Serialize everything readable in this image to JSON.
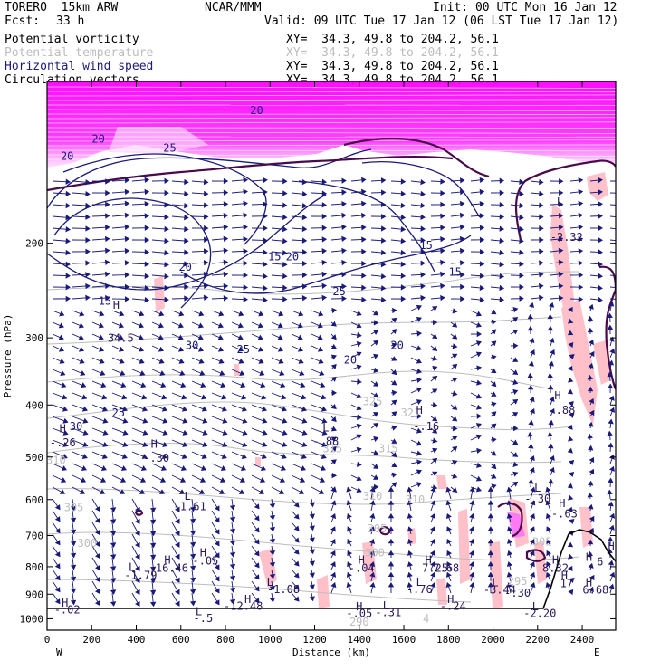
{
  "header": {
    "model": "TORERO  15km ARW",
    "org": "NCAR/MMM",
    "init": "Init: 00 UTC Mon 16 Jan 12",
    "fcst_label": "Fcst:",
    "fcst_value": "33 h",
    "valid": "Valid: 09 UTC Tue 17 Jan 12 (06 LST Tue 17 Jan 12)"
  },
  "fields": [
    {
      "name": "Potential vorticity",
      "xy": "XY=  34.3, 49.8 to 204.2, 56.1",
      "color": "#000000"
    },
    {
      "name": "Potential temperature",
      "xy": "XY=  34.3, 49.8 to 204.2, 56.1",
      "color": "#bdbdbd"
    },
    {
      "name": "Horizontal wind speed",
      "xy": "XY=  34.3, 49.8 to 204.2, 56.1",
      "color": "#1a1a7a"
    },
    {
      "name": "Circulation vectors",
      "xy": "XY=  34.3, 49.8 to 204.2, 56.1",
      "color": "#000000"
    }
  ],
  "chart_data": {
    "type": "cross-section",
    "xlabel": "Distance (km)",
    "ylabel": "Pressure (hPa)",
    "x_ticks": [
      0,
      200,
      400,
      600,
      800,
      1000,
      1200,
      1400,
      1600,
      1800,
      2000,
      2200,
      2400
    ],
    "y_ticks": [
      200,
      300,
      400,
      500,
      600,
      700,
      800,
      900,
      1000
    ],
    "xlim": [
      0,
      2550
    ],
    "ylim": [
      1050,
      100
    ],
    "x_end_labels": {
      "left": "W",
      "right": "E"
    },
    "colors": {
      "pv_shade_high": "#ff00ff",
      "pv_shade_low": "#ffb6c1",
      "theta": "#bdbdbd",
      "wind": "#1a1a7a",
      "vectors": "#1a1a7a",
      "ground": "#000000"
    },
    "theta_labels": [
      {
        "x": 120,
        "p": 630,
        "t": "305"
      },
      {
        "x": 180,
        "p": 735,
        "t": "300"
      },
      {
        "x": 40,
        "p": 515,
        "t": "310"
      },
      {
        "x": 1280,
        "p": 490,
        "t": "315"
      },
      {
        "x": 1530,
        "p": 490,
        "t": "315"
      },
      {
        "x": 1460,
        "p": 600,
        "t": "310"
      },
      {
        "x": 1650,
        "p": 610,
        "t": "310"
      },
      {
        "x": 1480,
        "p": 690,
        "t": "305"
      },
      {
        "x": 2220,
        "p": 730,
        "t": "305"
      },
      {
        "x": 1470,
        "p": 765,
        "t": "300"
      },
      {
        "x": 1460,
        "p": 400,
        "t": "325"
      },
      {
        "x": 1630,
        "p": 420,
        "t": "321"
      },
      {
        "x": 1700,
        "p": 1015,
        "t": "4"
      },
      {
        "x": 2110,
        "p": 865,
        "t": "295"
      },
      {
        "x": 1400,
        "p": 1030,
        "t": "290"
      }
    ],
    "wind_labels": [
      {
        "x": 90,
        "p": 140,
        "t": "20"
      },
      {
        "x": 230,
        "p": 130,
        "t": "20"
      },
      {
        "x": 550,
        "p": 135,
        "t": "25"
      },
      {
        "x": 940,
        "p": 115,
        "t": "20"
      },
      {
        "x": 620,
        "p": 225,
        "t": "20"
      },
      {
        "x": 1020,
        "p": 215,
        "t": "15"
      },
      {
        "x": 1310,
        "p": 250,
        "t": "25"
      },
      {
        "x": 1360,
        "p": 335,
        "t": "20"
      },
      {
        "x": 1570,
        "p": 315,
        "t": "20"
      },
      {
        "x": 1830,
        "p": 230,
        "t": "15"
      },
      {
        "x": 650,
        "p": 315,
        "t": "30"
      },
      {
        "x": 880,
        "p": 320,
        "t": "25"
      },
      {
        "x": 320,
        "p": 420,
        "t": "25"
      },
      {
        "x": 130,
        "p": 445,
        "t": "30"
      },
      {
        "x": 260,
        "p": 260,
        "t": "15"
      },
      {
        "x": 1100,
        "p": 215,
        "t": "20"
      },
      {
        "x": 1700,
        "p": 205,
        "t": "15"
      }
    ],
    "pv_labels": [
      {
        "x": 310,
        "p": 265,
        "t": "H"
      },
      {
        "x": 330,
        "p": 305,
        "t": "34.5"
      },
      {
        "x": 70,
        "p": 450,
        "t": "H"
      },
      {
        "x": 70,
        "p": 478,
        "t": "-.26"
      },
      {
        "x": 480,
        "p": 480,
        "t": "H"
      },
      {
        "x": 490,
        "p": 510,
        "t": "-.30"
      },
      {
        "x": 1250,
        "p": 448,
        "t": "L"
      },
      {
        "x": 1250,
        "p": 475,
        "t": "-.88"
      },
      {
        "x": 1670,
        "p": 415,
        "t": "H"
      },
      {
        "x": 1700,
        "p": 445,
        "t": "-.16"
      },
      {
        "x": 630,
        "p": 600,
        "t": "L"
      },
      {
        "x": 640,
        "p": 628,
        "t": "-1.61"
      },
      {
        "x": 2290,
        "p": 390,
        "t": "H"
      },
      {
        "x": 2310,
        "p": 415,
        "t": "-.88"
      },
      {
        "x": 2200,
        "p": 580,
        "t": "L"
      },
      {
        "x": 2200,
        "p": 608,
        "t": "-.30"
      },
      {
        "x": 2310,
        "p": 620,
        "t": "H"
      },
      {
        "x": 2320,
        "p": 648,
        "t": "-.63"
      },
      {
        "x": 700,
        "p": 765,
        "t": "H"
      },
      {
        "x": 710,
        "p": 793,
        "t": "-.05"
      },
      {
        "x": 540,
        "p": 790,
        "t": "H"
      },
      {
        "x": 560,
        "p": 818,
        "t": "16.46"
      },
      {
        "x": 380,
        "p": 815,
        "t": "L"
      },
      {
        "x": 420,
        "p": 843,
        "t": "-1.79"
      },
      {
        "x": 1410,
        "p": 790,
        "t": "H"
      },
      {
        "x": 1410,
        "p": 818,
        "t": "-.04"
      },
      {
        "x": 1710,
        "p": 790,
        "t": "H"
      },
      {
        "x": 1740,
        "p": 818,
        "t": "7.25"
      },
      {
        "x": 1790,
        "p": 818,
        "t": "7.68"
      },
      {
        "x": 2280,
        "p": 790,
        "t": "H"
      },
      {
        "x": 2280,
        "p": 818,
        "t": "8.32"
      },
      {
        "x": 1000,
        "p": 868,
        "t": "L"
      },
      {
        "x": 1060,
        "p": 896,
        "t": "-1.08"
      },
      {
        "x": 1670,
        "p": 868,
        "t": "L"
      },
      {
        "x": 1670,
        "p": 896,
        "t": "-.76"
      },
      {
        "x": 2010,
        "p": 870,
        "t": "L"
      },
      {
        "x": 2030,
        "p": 898,
        "t": "-3.44"
      },
      {
        "x": 2110,
        "p": 910,
        "t": "-.30"
      },
      {
        "x": 2320,
        "p": 845,
        "t": "H"
      },
      {
        "x": 2330,
        "p": 873,
        "t": "17"
      },
      {
        "x": 2430,
        "p": 870,
        "t": "H"
      },
      {
        "x": 2460,
        "p": 898,
        "t": "6.68"
      },
      {
        "x": 900,
        "p": 935,
        "t": "H"
      },
      {
        "x": 880,
        "p": 963,
        "t": "-12.48"
      },
      {
        "x": 1810,
        "p": 935,
        "t": "H"
      },
      {
        "x": 1820,
        "p": 963,
        "t": "-.24"
      },
      {
        "x": 80,
        "p": 950,
        "t": "H"
      },
      {
        "x": 90,
        "p": 978,
        "t": "-.02"
      },
      {
        "x": 1520,
        "p": 960,
        "t": "L"
      },
      {
        "x": 1530,
        "p": 988,
        "t": "-.31"
      },
      {
        "x": 1400,
        "p": 965,
        "t": "H"
      },
      {
        "x": 1400,
        "p": 993,
        "t": "-.05"
      },
      {
        "x": 2190,
        "p": 965,
        "t": "L"
      },
      {
        "x": 2210,
        "p": 993,
        "t": "-2.20"
      },
      {
        "x": 680,
        "p": 985,
        "t": "L"
      },
      {
        "x": 700,
        "p": 1013,
        "t": "-.5"
      },
      {
        "x": 2430,
        "p": 780,
        "t": "H"
      },
      {
        "x": 2480,
        "p": 795,
        "t": "6"
      },
      {
        "x": 2530,
        "p": 745,
        "t": "H"
      },
      {
        "x": 2300,
        "p": 170,
        "t": "L"
      },
      {
        "x": 2330,
        "p": 198,
        "t": "-2.32"
      }
    ]
  }
}
